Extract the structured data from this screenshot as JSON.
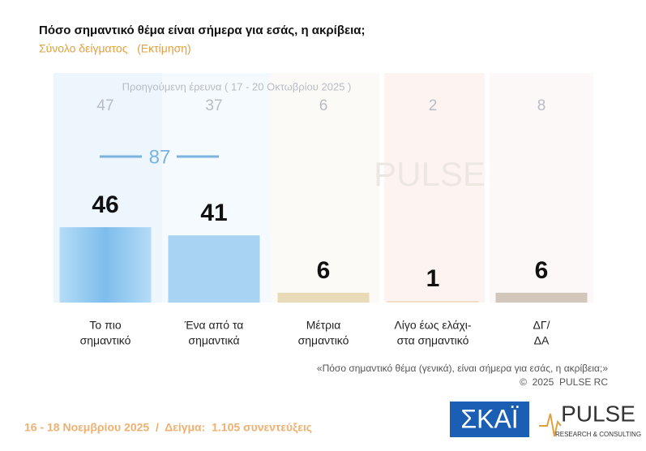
{
  "chart_data": {
    "type": "bar",
    "title": "Πόσο σημαντικό θέμα είναι σήμερα για εσάς, η ακρίβεια;",
    "subtitle": "Σύνολο δείγματος   (Εκτίμηση)",
    "categories": [
      [
        "Το πιο",
        "σημαντικό"
      ],
      [
        "Ένα από τα",
        "σημαντικά"
      ],
      [
        "Μέτρια",
        "σημαντικό"
      ],
      [
        "Λίγο έως ελάχι-",
        "στα σημαντικό"
      ],
      [
        "ΔΓ/",
        "ΔΑ"
      ]
    ],
    "values": [
      46,
      41,
      6,
      1,
      6
    ],
    "colors": [
      "#8cc6ef",
      "#a8d3f3",
      "#eadbb8",
      "#f2dec6",
      "#d3c7bb"
    ],
    "previous": {
      "label": "Προηγούμενη έρευνα ( 17 - 20 Οκτωβρίου 2025 )",
      "values": [
        47,
        37,
        6,
        2,
        8
      ]
    },
    "top2_total": 87,
    "note": "«Πόσο σημαντικό θέμα (γενικά), είναι σήμερα για εσάς, η ακρίβεια;»",
    "copyright": "©  2025  PULSE RC",
    "footer": "16 - 18 Νοεμβρίου 2025  /  Δείγμα:  1.105 συνεντεύξεις",
    "logo_skai": "ΣΚΑΪ",
    "logo_pulse": "PULSE",
    "logo_pulse_sub": "RESEARCH & CONSULTING"
  }
}
